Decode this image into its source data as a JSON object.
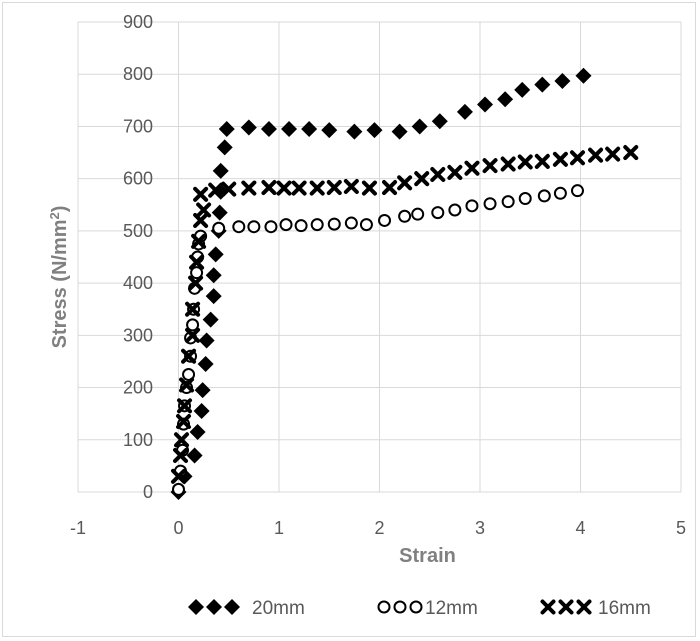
{
  "chart_data": {
    "type": "scatter",
    "xlabel": "Strain",
    "ylabel": "Stress (N/mm²)",
    "ylabel_main": "Stress (N/mm",
    "ylabel_sup": "2",
    "ylabel_close": ")",
    "xlim": [
      -1,
      5
    ],
    "ylim": [
      0,
      900
    ],
    "xticks": [
      "-1",
      "0",
      "1",
      "2",
      "3",
      "4",
      "5"
    ],
    "yticks": [
      "0",
      "100",
      "200",
      "300",
      "400",
      "500",
      "600",
      "700",
      "800",
      "900"
    ],
    "grid": true,
    "legend_position": "bottom",
    "series": [
      {
        "name": "20mm",
        "marker": "diamond",
        "color": "#000000",
        "points": [
          [
            0,
            0
          ],
          [
            0.06,
            30
          ],
          [
            0.16,
            70
          ],
          [
            0.19,
            115
          ],
          [
            0.23,
            155
          ],
          [
            0.24,
            195
          ],
          [
            0.27,
            245
          ],
          [
            0.28,
            290
          ],
          [
            0.32,
            330
          ],
          [
            0.35,
            375
          ],
          [
            0.35,
            415
          ],
          [
            0.37,
            455
          ],
          [
            0.4,
            500
          ],
          [
            0.41,
            535
          ],
          [
            0.42,
            575
          ],
          [
            0.42,
            615
          ],
          [
            0.46,
            660
          ],
          [
            0.48,
            695
          ],
          [
            0.7,
            698
          ],
          [
            0.9,
            695
          ],
          [
            1.1,
            695
          ],
          [
            1.3,
            695
          ],
          [
            1.5,
            693
          ],
          [
            1.75,
            690
          ],
          [
            1.95,
            693
          ],
          [
            2.2,
            690
          ],
          [
            2.4,
            700
          ],
          [
            2.6,
            710
          ],
          [
            2.85,
            728
          ],
          [
            3.05,
            742
          ],
          [
            3.25,
            752
          ],
          [
            3.42,
            770
          ],
          [
            3.62,
            780
          ],
          [
            3.82,
            787
          ],
          [
            4.03,
            797
          ]
        ]
      },
      {
        "name": "12mm",
        "marker": "circle",
        "color": "#000000",
        "points": [
          [
            0.0,
            5
          ],
          [
            0.02,
            40
          ],
          [
            0.04,
            80
          ],
          [
            0.05,
            130
          ],
          [
            0.06,
            165
          ],
          [
            0.08,
            200
          ],
          [
            0.1,
            225
          ],
          [
            0.12,
            260
          ],
          [
            0.12,
            295
          ],
          [
            0.14,
            320
          ],
          [
            0.15,
            350
          ],
          [
            0.16,
            390
          ],
          [
            0.18,
            420
          ],
          [
            0.19,
            450
          ],
          [
            0.2,
            475
          ],
          [
            0.22,
            490
          ],
          [
            0.4,
            505
          ],
          [
            0.6,
            508
          ],
          [
            0.75,
            508
          ],
          [
            0.92,
            508
          ],
          [
            1.07,
            512
          ],
          [
            1.22,
            510
          ],
          [
            1.38,
            512
          ],
          [
            1.55,
            513
          ],
          [
            1.72,
            515
          ],
          [
            1.87,
            512
          ],
          [
            2.05,
            520
          ],
          [
            2.25,
            528
          ],
          [
            2.38,
            532
          ],
          [
            2.58,
            535
          ],
          [
            2.75,
            540
          ],
          [
            2.92,
            548
          ],
          [
            3.1,
            552
          ],
          [
            3.28,
            556
          ],
          [
            3.45,
            562
          ],
          [
            3.64,
            567
          ],
          [
            3.8,
            572
          ],
          [
            3.97,
            577
          ]
        ]
      },
      {
        "name": "16mm",
        "marker": "x",
        "color": "#000000",
        "points": [
          [
            0.0,
            30
          ],
          [
            0.02,
            70
          ],
          [
            0.03,
            100
          ],
          [
            0.05,
            135
          ],
          [
            0.06,
            165
          ],
          [
            0.08,
            205
          ],
          [
            0.1,
            260
          ],
          [
            0.14,
            300
          ],
          [
            0.14,
            350
          ],
          [
            0.17,
            400
          ],
          [
            0.18,
            440
          ],
          [
            0.2,
            480
          ],
          [
            0.22,
            520
          ],
          [
            0.25,
            540
          ],
          [
            0.22,
            570
          ],
          [
            0.37,
            578
          ],
          [
            0.5,
            580
          ],
          [
            0.7,
            582
          ],
          [
            0.9,
            583
          ],
          [
            1.05,
            582
          ],
          [
            1.2,
            582
          ],
          [
            1.38,
            582
          ],
          [
            1.55,
            583
          ],
          [
            1.72,
            585
          ],
          [
            1.9,
            582
          ],
          [
            2.1,
            583
          ],
          [
            2.25,
            592
          ],
          [
            2.42,
            600
          ],
          [
            2.58,
            608
          ],
          [
            2.75,
            612
          ],
          [
            2.92,
            620
          ],
          [
            3.1,
            625
          ],
          [
            3.28,
            628
          ],
          [
            3.45,
            632
          ],
          [
            3.62,
            633
          ],
          [
            3.8,
            637
          ],
          [
            3.97,
            640
          ],
          [
            4.15,
            645
          ],
          [
            4.32,
            647
          ],
          [
            4.5,
            650
          ]
        ]
      }
    ]
  },
  "legend": {
    "items": [
      {
        "label": "20mm"
      },
      {
        "label": "12mm"
      },
      {
        "label": "16mm"
      }
    ]
  }
}
